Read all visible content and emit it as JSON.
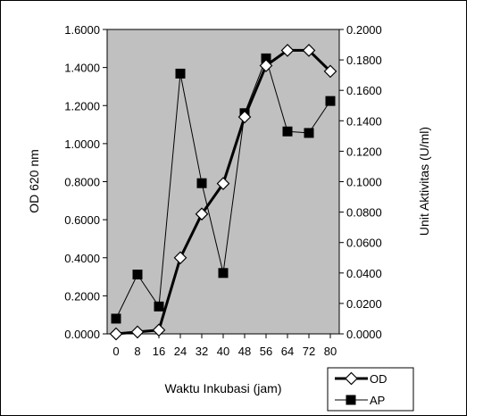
{
  "chart_data": {
    "type": "line",
    "xlabel": "Waktu Inkubasi (jam)",
    "ylabel_left": "OD 620 nm",
    "ylabel_right": "Unit Aktivitas (U/ml)",
    "x": [
      0,
      8,
      16,
      24,
      32,
      40,
      48,
      56,
      64,
      72,
      80
    ],
    "x_ticks": [
      "0",
      "8",
      "16",
      "24",
      "32",
      "40",
      "48",
      "56",
      "64",
      "72",
      "80"
    ],
    "ylim_left": [
      0,
      1.6
    ],
    "ylim_right": [
      0,
      0.2
    ],
    "yticks_left": [
      "0.0000",
      "0.2000",
      "0.4000",
      "0.6000",
      "0.8000",
      "1.0000",
      "1.2000",
      "1.4000",
      "1.6000"
    ],
    "yticks_right": [
      "0.0000",
      "0.0200",
      "0.0400",
      "0.0600",
      "0.0800",
      "0.1000",
      "0.1200",
      "0.1400",
      "0.1600",
      "0.1800",
      "0.2000"
    ],
    "grid": false,
    "background_color": "#C0C0C0",
    "legend_position": "bottom-right",
    "series": [
      {
        "name": "OD",
        "axis": "left",
        "marker": "open-diamond",
        "line": "bold",
        "values": [
          0.0,
          0.01,
          0.02,
          0.4,
          0.63,
          0.79,
          1.14,
          1.41,
          1.49,
          1.49,
          1.38
        ]
      },
      {
        "name": "AP",
        "axis": "right",
        "marker": "filled-square",
        "line": "thin",
        "values": [
          0.01,
          0.039,
          0.018,
          0.171,
          0.099,
          0.04,
          0.145,
          0.181,
          0.133,
          0.132,
          0.153
        ]
      }
    ]
  }
}
